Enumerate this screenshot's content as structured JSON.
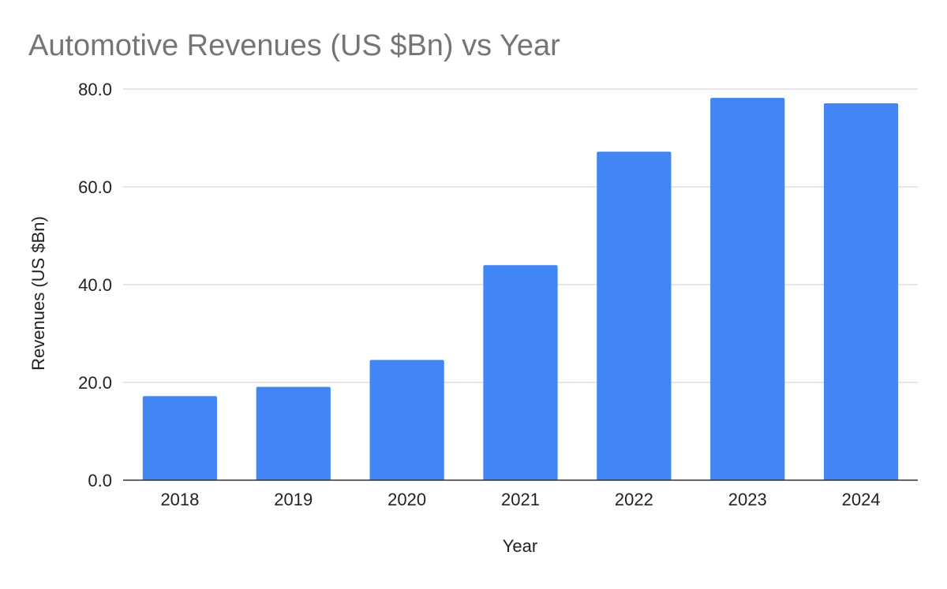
{
  "chart_data": {
    "type": "bar",
    "title": "Automotive Revenues (US $Bn) vs Year",
    "xlabel": "Year",
    "ylabel": "Revenues (US $Bn)",
    "categories": [
      "2018",
      "2019",
      "2020",
      "2021",
      "2022",
      "2023",
      "2024"
    ],
    "values": [
      17.2,
      19.1,
      24.6,
      44.0,
      67.2,
      78.2,
      77.1
    ],
    "ylim": [
      0,
      80
    ],
    "yticks": [
      "0.0",
      "20.0",
      "40.0",
      "60.0",
      "80.0"
    ],
    "grid": true,
    "legend": "none",
    "bar_color": "#4285F4",
    "gridline_color": "#cccccc",
    "axis_color": "#333333"
  }
}
